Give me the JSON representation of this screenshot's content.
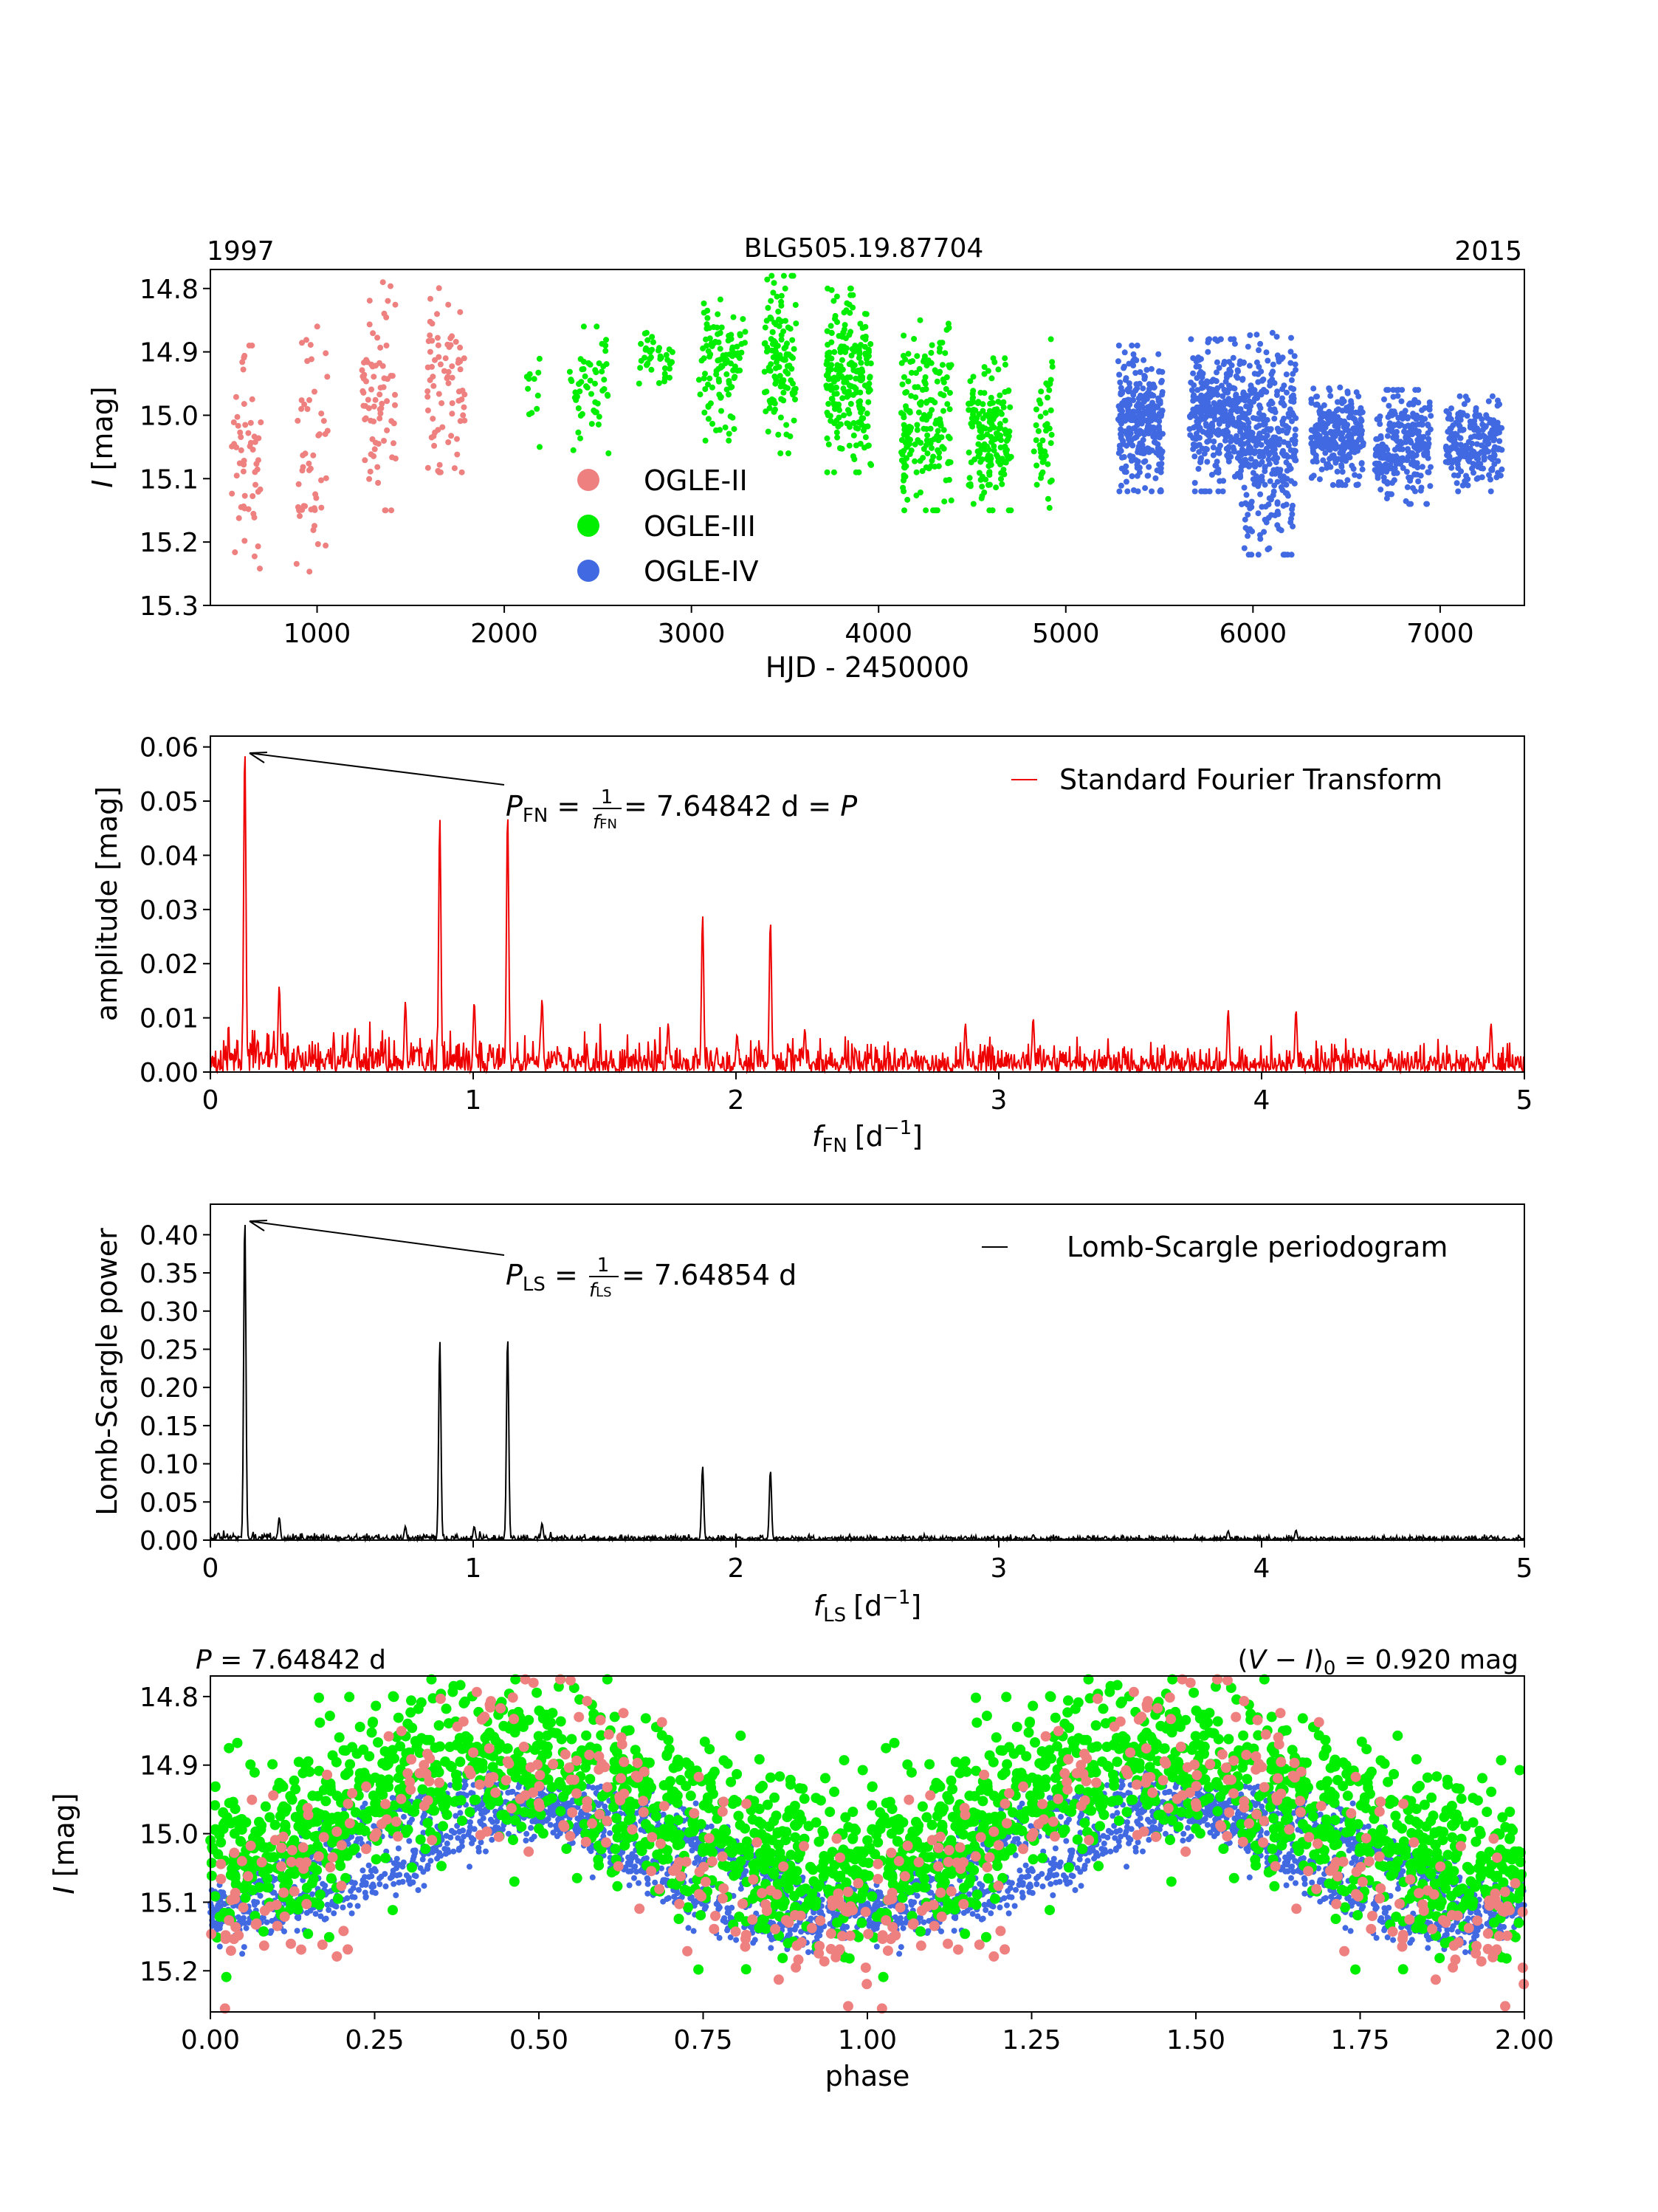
{
  "colors": {
    "ogle2": "#ee8080",
    "ogle3": "#00ee00",
    "ogle4": "#4169e1",
    "fourier": "#ee0000",
    "ls": "#000000"
  },
  "chart_data": [
    {
      "id": "lightcurve",
      "type": "scatter",
      "title": "BLG505.19.87704",
      "year_left": "1997",
      "year_right": "2015",
      "xlabel": "HJD - 2450000",
      "ylabel_var": "I",
      "ylabel_unit": " [mag]",
      "xlim": [
        430,
        7450
      ],
      "ylim": [
        15.3,
        14.77
      ],
      "y_inverted": true,
      "x_ticks": [
        "1000",
        "2000",
        "3000",
        "4000",
        "5000",
        "6000",
        "7000"
      ],
      "y_ticks": [
        "14.8",
        "14.9",
        "15.0",
        "15.1",
        "15.2",
        "15.3"
      ],
      "legend": [
        "OGLE-II",
        "OGLE-III",
        "OGLE-IV"
      ],
      "legend_position": "center-left",
      "seasons": {
        "OGLE-II": [
          {
            "x": [
              540,
              700
            ],
            "y": [
              14.89,
              15.26
            ],
            "n": 55
          },
          {
            "x": [
              890,
              1060
            ],
            "y": [
              14.86,
              15.27
            ],
            "n": 50
          },
          {
            "x": [
              1240,
              1420
            ],
            "y": [
              14.79,
              15.15
            ],
            "n": 75
          },
          {
            "x": [
              1590,
              1790
            ],
            "y": [
              14.78,
              15.09
            ],
            "n": 75
          }
        ],
        "OGLE-III": [
          {
            "x": [
              2120,
              2200
            ],
            "y": [
              14.89,
              15.05
            ],
            "n": 12
          },
          {
            "x": [
              2350,
              2560
            ],
            "y": [
              14.86,
              15.06
            ],
            "n": 55
          },
          {
            "x": [
              2720,
              2900
            ],
            "y": [
              14.87,
              14.95
            ],
            "n": 40
          },
          {
            "x": [
              3040,
              3290
            ],
            "y": [
              14.8,
              15.04
            ],
            "n": 110
          },
          {
            "x": [
              3390,
              3560
            ],
            "y": [
              14.78,
              15.06
            ],
            "n": 120
          },
          {
            "x": [
              3720,
              3960
            ],
            "y": [
              14.8,
              15.09
            ],
            "n": 220
          },
          {
            "x": [
              4120,
              4390
            ],
            "y": [
              14.85,
              15.15
            ],
            "n": 190
          },
          {
            "x": [
              4480,
              4710
            ],
            "y": [
              14.91,
              15.15
            ],
            "n": 180
          },
          {
            "x": [
              4830,
              4930
            ],
            "y": [
              14.88,
              15.17
            ],
            "n": 45
          }
        ],
        "OGLE-IV": [
          {
            "x": [
              5280,
              5520
            ],
            "y": [
              14.89,
              15.12
            ],
            "n": 300
          },
          {
            "x": [
              5660,
              5950
            ],
            "y": [
              14.88,
              15.12
            ],
            "n": 320
          },
          {
            "x": [
              5930,
              6230
            ],
            "y": [
              14.87,
              15.22
            ],
            "n": 360
          },
          {
            "x": [
              6310,
              6590
            ],
            "y": [
              14.95,
              15.11
            ],
            "n": 260
          },
          {
            "x": [
              6650,
              6950
            ],
            "y": [
              14.96,
              15.14
            ],
            "n": 260
          },
          {
            "x": [
              7030,
              7330
            ],
            "y": [
              14.97,
              15.12
            ],
            "n": 220
          }
        ]
      }
    },
    {
      "id": "fourier",
      "type": "line",
      "xlabel_var": "f",
      "xlabel_sub": "FN",
      "xlabel_unit": "[d",
      "xlabel_exp": "−1",
      "xlabel_close": "]",
      "ylabel": "amplitude [mag]",
      "xlim": [
        0,
        5
      ],
      "ylim": [
        0,
        0.062
      ],
      "x_ticks": [
        "0",
        "1",
        "2",
        "3",
        "4",
        "5"
      ],
      "y_ticks": [
        "0.00",
        "0.01",
        "0.02",
        "0.03",
        "0.04",
        "0.05",
        "0.06"
      ],
      "legend": "Standard Fourier Transform",
      "legend_position": "top-right",
      "noise_level": 0.0035,
      "peaks": [
        {
          "f": 0.131,
          "a": 0.06
        },
        {
          "f": 0.262,
          "a": 0.016
        },
        {
          "f": 0.742,
          "a": 0.013
        },
        {
          "f": 0.873,
          "a": 0.047
        },
        {
          "f": 1.004,
          "a": 0.013
        },
        {
          "f": 1.131,
          "a": 0.048
        },
        {
          "f": 1.262,
          "a": 0.0135
        },
        {
          "f": 1.742,
          "a": 0.009
        },
        {
          "f": 1.873,
          "a": 0.029
        },
        {
          "f": 2.004,
          "a": 0.007
        },
        {
          "f": 2.131,
          "a": 0.028
        },
        {
          "f": 2.262,
          "a": 0.008
        },
        {
          "f": 2.873,
          "a": 0.009
        },
        {
          "f": 3.131,
          "a": 0.01
        },
        {
          "f": 3.873,
          "a": 0.0115
        },
        {
          "f": 4.131,
          "a": 0.0115
        },
        {
          "f": 4.873,
          "a": 0.009
        }
      ],
      "annotation": {
        "var": "P",
        "sub": "FN",
        "eq": " = ",
        "frac_num": "1",
        "frac_den_var": "f",
        "frac_den_sub": "FN",
        "value": " = 7.64842 d = ",
        "tail_var": "P",
        "points_to": {
          "f": 0.131,
          "a": 0.06
        }
      }
    },
    {
      "id": "lombscargle",
      "type": "line",
      "xlabel_var": "f",
      "xlabel_sub": "LS",
      "xlabel_unit": "[d",
      "xlabel_exp": "−1",
      "xlabel_close": "]",
      "ylabel": "Lomb-Scargle power",
      "xlim": [
        0,
        5
      ],
      "ylim": [
        0,
        0.44
      ],
      "x_ticks": [
        "0",
        "1",
        "2",
        "3",
        "4",
        "5"
      ],
      "y_ticks": [
        "0.00",
        "0.05",
        "0.10",
        "0.15",
        "0.20",
        "0.25",
        "0.30",
        "0.35",
        "0.40"
      ],
      "legend": "Lomb-Scargle periodogram",
      "legend_position": "top-right",
      "noise_level": 0.004,
      "peaks": [
        {
          "f": 0.131,
          "a": 0.425
        },
        {
          "f": 0.262,
          "a": 0.03
        },
        {
          "f": 0.742,
          "a": 0.018
        },
        {
          "f": 0.873,
          "a": 0.262
        },
        {
          "f": 1.004,
          "a": 0.018
        },
        {
          "f": 1.131,
          "a": 0.268
        },
        {
          "f": 1.262,
          "a": 0.022
        },
        {
          "f": 1.873,
          "a": 0.097
        },
        {
          "f": 2.131,
          "a": 0.092
        },
        {
          "f": 2.873,
          "a": 0.005
        },
        {
          "f": 3.131,
          "a": 0.007
        },
        {
          "f": 3.873,
          "a": 0.012
        },
        {
          "f": 4.131,
          "a": 0.013
        },
        {
          "f": 4.873,
          "a": 0.006
        }
      ],
      "annotation": {
        "var": "P",
        "sub": "LS",
        "eq": " = ",
        "frac_num": "1",
        "frac_den_var": "f",
        "frac_den_sub": "LS",
        "value": " = 7.64854 d",
        "points_to": {
          "f": 0.131,
          "a": 0.425
        }
      }
    },
    {
      "id": "phased",
      "type": "scatter",
      "title_left_var": "P",
      "title_left_value": " = 7.64842 d",
      "title_right_pre": "(",
      "title_right_var1": "V",
      "title_right_minus": " − ",
      "title_right_var2": "I",
      "title_right_close": ")",
      "title_right_sub": "0",
      "title_right_value": " = 0.920 mag",
      "xlabel": "phase",
      "ylabel_var": "I",
      "ylabel_unit": " [mag]",
      "xlim": [
        0,
        2
      ],
      "ylim": [
        15.26,
        14.77
      ],
      "y_inverted": true,
      "x_ticks": [
        "0.00",
        "0.25",
        "0.50",
        "0.75",
        "1.00",
        "1.25",
        "1.50",
        "1.75",
        "2.00"
      ],
      "y_ticks": [
        "14.8",
        "14.9",
        "15.0",
        "15.1",
        "15.2"
      ],
      "period_days": 7.64842,
      "series_shape": {
        "OGLE-II": {
          "mean": 15.0,
          "amp": 0.12,
          "scatter": 0.09,
          "n": 260
        },
        "OGLE-III": {
          "mean": 14.97,
          "amp": 0.08,
          "scatter": 0.09,
          "n": 1100
        },
        "OGLE-IV": {
          "mean": 15.04,
          "amp": 0.075,
          "scatter": 0.035,
          "n": 1600
        }
      }
    }
  ]
}
